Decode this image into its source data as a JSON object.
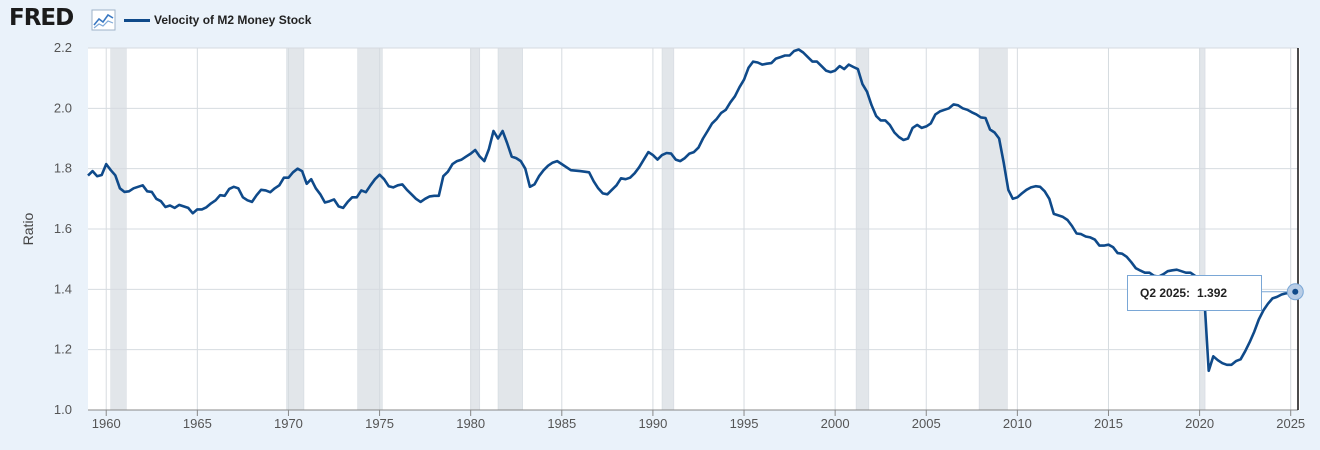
{
  "header": {
    "logo_text": "FRED",
    "logo_icon": "line-chart-icon",
    "legend_label": "Velocity of M2 Money Stock",
    "legend_color": "#0f4a8a"
  },
  "tooltip": {
    "label": "Q2 2025:",
    "value": "1.392"
  },
  "chart_data": {
    "type": "line",
    "title": "",
    "xlabel": "",
    "ylabel": "Ratio",
    "xlim": [
      1959,
      2025.4
    ],
    "ylim": [
      1.0,
      2.2
    ],
    "xticks": [
      1960,
      1965,
      1970,
      1975,
      1980,
      1985,
      1990,
      1995,
      2000,
      2005,
      2010,
      2015,
      2020,
      2025
    ],
    "yticks": [
      "1.0",
      "1.2",
      "1.4",
      "1.6",
      "1.8",
      "2.0",
      "2.2"
    ],
    "grid": true,
    "line_color": "#0f4a8a",
    "recession_color": "#e2e6ea",
    "recessions": [
      [
        1960.25,
        1961.1
      ],
      [
        1969.9,
        1970.85
      ],
      [
        1973.8,
        1975.15
      ],
      [
        1980.0,
        1980.5
      ],
      [
        1981.5,
        1982.85
      ],
      [
        1990.5,
        1991.15
      ],
      [
        2001.15,
        2001.85
      ],
      [
        2007.9,
        2009.45
      ],
      [
        2020.0,
        2020.3
      ]
    ],
    "series": [
      {
        "name": "Velocity of M2 Money Stock",
        "x": [
          1959.0,
          1959.25,
          1959.5,
          1959.75,
          1960.0,
          1960.25,
          1960.5,
          1960.75,
          1961.0,
          1961.25,
          1961.5,
          1961.75,
          1962.0,
          1962.25,
          1962.5,
          1962.75,
          1963.0,
          1963.25,
          1963.5,
          1963.75,
          1964.0,
          1964.25,
          1964.5,
          1964.75,
          1965.0,
          1965.25,
          1965.5,
          1965.75,
          1966.0,
          1966.25,
          1966.5,
          1966.75,
          1967.0,
          1967.25,
          1967.5,
          1967.75,
          1968.0,
          1968.25,
          1968.5,
          1968.75,
          1969.0,
          1969.25,
          1969.5,
          1969.75,
          1970.0,
          1970.25,
          1970.5,
          1970.75,
          1971.0,
          1971.25,
          1971.5,
          1971.75,
          1972.0,
          1972.25,
          1972.5,
          1972.75,
          1973.0,
          1973.25,
          1973.5,
          1973.75,
          1974.0,
          1974.25,
          1974.5,
          1974.75,
          1975.0,
          1975.25,
          1975.5,
          1975.75,
          1976.0,
          1976.25,
          1976.5,
          1976.75,
          1977.0,
          1977.25,
          1977.5,
          1977.75,
          1978.0,
          1978.25,
          1978.5,
          1978.75,
          1979.0,
          1979.25,
          1979.5,
          1979.75,
          1980.0,
          1980.25,
          1980.5,
          1980.75,
          1981.0,
          1981.25,
          1981.5,
          1981.75,
          1982.0,
          1982.25,
          1982.5,
          1982.75,
          1983.0,
          1983.25,
          1983.5,
          1983.75,
          1984.0,
          1984.25,
          1984.5,
          1984.75,
          1985.0,
          1985.5,
          1986.0,
          1986.25,
          1986.5,
          1986.75,
          1987.0,
          1987.25,
          1987.5,
          1987.75,
          1988.0,
          1988.25,
          1988.5,
          1988.75,
          1989.0,
          1989.25,
          1989.5,
          1989.75,
          1990.0,
          1990.25,
          1990.5,
          1990.75,
          1991.0,
          1991.25,
          1991.5,
          1991.75,
          1992.0,
          1992.25,
          1992.5,
          1992.75,
          1993.0,
          1993.25,
          1993.5,
          1993.75,
          1994.0,
          1994.25,
          1994.5,
          1994.75,
          1995.0,
          1995.25,
          1995.5,
          1995.75,
          1996.0,
          1996.25,
          1996.5,
          1996.75,
          1997.0,
          1997.25,
          1997.5,
          1997.75,
          1998.0,
          1998.25,
          1998.5,
          1998.75,
          1999.0,
          1999.25,
          1999.5,
          1999.75,
          2000.0,
          2000.25,
          2000.5,
          2000.75,
          2001.0,
          2001.25,
          2001.5,
          2001.75,
          2002.0,
          2002.25,
          2002.5,
          2002.75,
          2003.0,
          2003.25,
          2003.5,
          2003.75,
          2004.0,
          2004.25,
          2004.5,
          2004.75,
          2005.0,
          2005.25,
          2005.5,
          2005.75,
          2006.0,
          2006.25,
          2006.5,
          2006.75,
          2007.0,
          2007.25,
          2007.5,
          2007.75,
          2008.0,
          2008.25,
          2008.5,
          2008.75,
          2009.0,
          2009.25,
          2009.5,
          2009.75,
          2010.0,
          2010.25,
          2010.5,
          2010.75,
          2011.0,
          2011.25,
          2011.5,
          2011.75,
          2012.0,
          2012.25,
          2012.5,
          2012.75,
          2013.0,
          2013.25,
          2013.5,
          2013.75,
          2014.0,
          2014.25,
          2014.5,
          2014.75,
          2015.0,
          2015.25,
          2015.5,
          2015.75,
          2016.0,
          2016.25,
          2016.5,
          2016.75,
          2017.0,
          2017.25,
          2017.5,
          2017.75,
          2018.0,
          2018.25,
          2018.5,
          2018.75,
          2019.0,
          2019.25,
          2019.5,
          2019.75,
          2020.0,
          2020.25,
          2020.5,
          2020.75,
          2021.0,
          2021.25,
          2021.5,
          2021.75,
          2022.0,
          2022.25,
          2022.5,
          2022.75,
          2023.0,
          2023.25,
          2023.5,
          2023.75,
          2024.0,
          2024.25,
          2024.5,
          2024.75,
          2025.0,
          2025.25
        ],
        "y": [
          1.777,
          1.792,
          1.775,
          1.779,
          1.815,
          1.795,
          1.778,
          1.735,
          1.723,
          1.725,
          1.735,
          1.74,
          1.745,
          1.725,
          1.723,
          1.7,
          1.692,
          1.673,
          1.678,
          1.67,
          1.68,
          1.675,
          1.67,
          1.652,
          1.665,
          1.665,
          1.672,
          1.685,
          1.695,
          1.712,
          1.71,
          1.733,
          1.74,
          1.735,
          1.705,
          1.695,
          1.69,
          1.712,
          1.73,
          1.728,
          1.722,
          1.735,
          1.745,
          1.77,
          1.77,
          1.788,
          1.8,
          1.792,
          1.75,
          1.765,
          1.735,
          1.715,
          1.688,
          1.692,
          1.698,
          1.675,
          1.67,
          1.69,
          1.705,
          1.705,
          1.728,
          1.722,
          1.745,
          1.765,
          1.78,
          1.765,
          1.742,
          1.738,
          1.745,
          1.748,
          1.73,
          1.715,
          1.7,
          1.69,
          1.7,
          1.708,
          1.71,
          1.71,
          1.775,
          1.79,
          1.815,
          1.825,
          1.83,
          1.84,
          1.85,
          1.862,
          1.84,
          1.825,
          1.865,
          1.925,
          1.9,
          1.925,
          1.885,
          1.84,
          1.835,
          1.825,
          1.8,
          1.74,
          1.748,
          1.775,
          1.795,
          1.81,
          1.82,
          1.825,
          1.815,
          1.795,
          1.792,
          1.79,
          1.788,
          1.758,
          1.735,
          1.718,
          1.715,
          1.73,
          1.745,
          1.768,
          1.765,
          1.77,
          1.785,
          1.805,
          1.83,
          1.855,
          1.845,
          1.83,
          1.845,
          1.852,
          1.85,
          1.83,
          1.825,
          1.835,
          1.85,
          1.855,
          1.87,
          1.9,
          1.925,
          1.95,
          1.965,
          1.985,
          1.995,
          2.02,
          2.04,
          2.07,
          2.095,
          2.135,
          2.155,
          2.152,
          2.145,
          2.148,
          2.15,
          2.165,
          2.17,
          2.175,
          2.175,
          2.19,
          2.195,
          2.185,
          2.17,
          2.155,
          2.155,
          2.14,
          2.125,
          2.12,
          2.125,
          2.14,
          2.13,
          2.145,
          2.137,
          2.13,
          2.08,
          2.055,
          2.01,
          1.975,
          1.96,
          1.96,
          1.945,
          1.92,
          1.905,
          1.895,
          1.9,
          1.935,
          1.945,
          1.935,
          1.94,
          1.95,
          1.98,
          1.99,
          1.995,
          2.0,
          2.013,
          2.01,
          2.0,
          1.995,
          1.987,
          1.98,
          1.97,
          1.968,
          1.93,
          1.92,
          1.9,
          1.82,
          1.73,
          1.7,
          1.705,
          1.718,
          1.73,
          1.738,
          1.742,
          1.74,
          1.725,
          1.7,
          1.65,
          1.645,
          1.64,
          1.63,
          1.61,
          1.585,
          1.583,
          1.575,
          1.572,
          1.565,
          1.545,
          1.545,
          1.548,
          1.54,
          1.52,
          1.518,
          1.508,
          1.49,
          1.47,
          1.462,
          1.455,
          1.455,
          1.445,
          1.442,
          1.45,
          1.46,
          1.463,
          1.465,
          1.46,
          1.455,
          1.455,
          1.445,
          1.43,
          1.38,
          1.13,
          1.178,
          1.165,
          1.155,
          1.15,
          1.15,
          1.162,
          1.168,
          1.195,
          1.225,
          1.26,
          1.3,
          1.33,
          1.352,
          1.37,
          1.375,
          1.383,
          1.387,
          1.39,
          1.392
        ]
      }
    ]
  }
}
